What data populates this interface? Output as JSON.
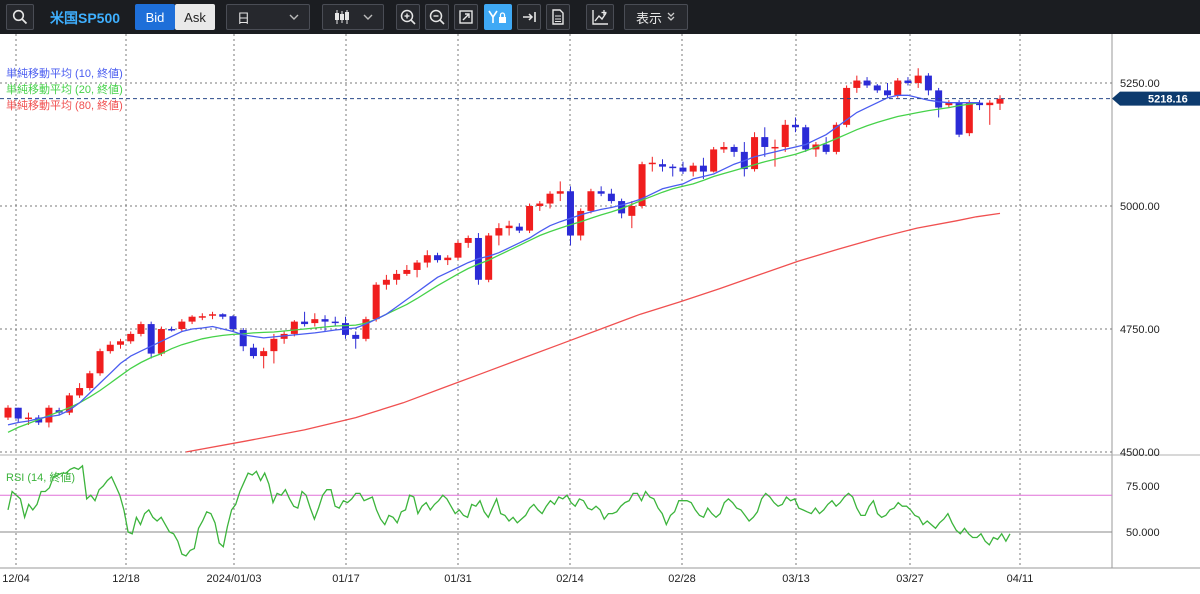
{
  "toolbar": {
    "symbol": "米国SP500",
    "bid_label": "Bid",
    "ask_label": "Ask",
    "timeframe": "日",
    "display_label": "表示"
  },
  "colors": {
    "up": "#f01e1e",
    "down": "#2b2bd6",
    "sma10": "#4a5cf0",
    "sma20": "#46d24a",
    "sma80": "#f05050",
    "rsi": "#3cb43c",
    "rsi_level": "#e070d8",
    "price_label_bg": "#0d3b6e"
  },
  "chart_data": {
    "type": "candlestick",
    "legend": [
      "単純移動平均 (10, 終値)",
      "単純移動平均 (20, 終値)",
      "単純移動平均 (80, 終値)"
    ],
    "last_price": "5218.16",
    "x_ticks": [
      "12/04",
      "12/18",
      "2024/01/03",
      "01/17",
      "01/31",
      "02/14",
      "02/28",
      "03/13",
      "03/27",
      "04/11"
    ],
    "y_ticks": [
      "4500.00",
      "4750.00",
      "5000.00",
      "5250.00"
    ],
    "ylim": [
      4500,
      5300
    ],
    "candles": [
      [
        4570,
        4595,
        4565,
        4590
      ],
      [
        4590,
        4590,
        4560,
        4568
      ],
      [
        4568,
        4580,
        4555,
        4570
      ],
      [
        4570,
        4575,
        4555,
        4560
      ],
      [
        4560,
        4595,
        4550,
        4590
      ],
      [
        4585,
        4590,
        4575,
        4580
      ],
      [
        4580,
        4620,
        4575,
        4615
      ],
      [
        4615,
        4640,
        4610,
        4630
      ],
      [
        4630,
        4665,
        4625,
        4660
      ],
      [
        4660,
        4710,
        4655,
        4705
      ],
      [
        4705,
        4725,
        4700,
        4718
      ],
      [
        4718,
        4730,
        4710,
        4725
      ],
      [
        4725,
        4745,
        4720,
        4740
      ],
      [
        4740,
        4765,
        4735,
        4760
      ],
      [
        4760,
        4765,
        4690,
        4700
      ],
      [
        4700,
        4755,
        4695,
        4750
      ],
      [
        4750,
        4755,
        4745,
        4748
      ],
      [
        4750,
        4770,
        4745,
        4765
      ],
      [
        4765,
        4778,
        4760,
        4775
      ],
      [
        4775,
        4782,
        4768,
        4776
      ],
      [
        4780,
        4785,
        4770,
        4780
      ],
      [
        4780,
        4782,
        4770,
        4775
      ],
      [
        4776,
        4778,
        4745,
        4750
      ],
      [
        4748,
        4752,
        4705,
        4715
      ],
      [
        4712,
        4720,
        4690,
        4695
      ],
      [
        4695,
        4712,
        4670,
        4705
      ],
      [
        4705,
        4740,
        4680,
        4730
      ],
      [
        4730,
        4745,
        4720,
        4740
      ],
      [
        4740,
        4768,
        4735,
        4765
      ],
      [
        4765,
        4785,
        4755,
        4760
      ],
      [
        4762,
        4782,
        4755,
        4770
      ],
      [
        4770,
        4778,
        4745,
        4765
      ],
      [
        4765,
        4775,
        4755,
        4762
      ],
      [
        4762,
        4775,
        4730,
        4738
      ],
      [
        4738,
        4745,
        4710,
        4730
      ],
      [
        4730,
        4775,
        4725,
        4770
      ],
      [
        4770,
        4845,
        4765,
        4840
      ],
      [
        4840,
        4860,
        4830,
        4850
      ],
      [
        4850,
        4870,
        4840,
        4862
      ],
      [
        4862,
        4880,
        4858,
        4870
      ],
      [
        4870,
        4890,
        4855,
        4885
      ],
      [
        4885,
        4910,
        4875,
        4900
      ],
      [
        4900,
        4905,
        4885,
        4890
      ],
      [
        4890,
        4900,
        4880,
        4895
      ],
      [
        4895,
        4930,
        4890,
        4925
      ],
      [
        4925,
        4940,
        4915,
        4935
      ],
      [
        4935,
        4945,
        4840,
        4850
      ],
      [
        4850,
        4945,
        4845,
        4940
      ],
      [
        4940,
        4965,
        4920,
        4955
      ],
      [
        4955,
        4970,
        4940,
        4960
      ],
      [
        4958,
        4965,
        4945,
        4950
      ],
      [
        4950,
        5005,
        4945,
        5000
      ],
      [
        5000,
        5010,
        4990,
        5005
      ],
      [
        5005,
        5030,
        4995,
        5025
      ],
      [
        5025,
        5050,
        5010,
        5030
      ],
      [
        5030,
        5040,
        4920,
        4940
      ],
      [
        4940,
        4995,
        4930,
        4990
      ],
      [
        4990,
        5035,
        4985,
        5030
      ],
      [
        5030,
        5040,
        5020,
        5025
      ],
      [
        5025,
        5035,
        5005,
        5010
      ],
      [
        5010,
        5015,
        4975,
        4985
      ],
      [
        4980,
        5010,
        4955,
        5000
      ],
      [
        5000,
        5090,
        4995,
        5085
      ],
      [
        5085,
        5100,
        5070,
        5088
      ],
      [
        5085,
        5095,
        5070,
        5080
      ],
      [
        5080,
        5085,
        5060,
        5078
      ],
      [
        5078,
        5090,
        5065,
        5070
      ],
      [
        5070,
        5088,
        5060,
        5082
      ],
      [
        5082,
        5098,
        5055,
        5070
      ],
      [
        5070,
        5120,
        5068,
        5115
      ],
      [
        5115,
        5130,
        5108,
        5120
      ],
      [
        5120,
        5125,
        5100,
        5110
      ],
      [
        5110,
        5130,
        5060,
        5075
      ],
      [
        5075,
        5150,
        5070,
        5140
      ],
      [
        5140,
        5160,
        5100,
        5120
      ],
      [
        5120,
        5135,
        5080,
        5120
      ],
      [
        5120,
        5175,
        5110,
        5165
      ],
      [
        5165,
        5180,
        5150,
        5160
      ],
      [
        5160,
        5165,
        5110,
        5115
      ],
      [
        5115,
        5130,
        5100,
        5125
      ],
      [
        5125,
        5140,
        5105,
        5110
      ],
      [
        5110,
        5170,
        5105,
        5165
      ],
      [
        5165,
        5245,
        5160,
        5240
      ],
      [
        5240,
        5265,
        5230,
        5255
      ],
      [
        5255,
        5262,
        5240,
        5245
      ],
      [
        5245,
        5248,
        5230,
        5235
      ],
      [
        5235,
        5250,
        5220,
        5225
      ],
      [
        5225,
        5260,
        5220,
        5255
      ],
      [
        5255,
        5262,
        5245,
        5250
      ],
      [
        5250,
        5280,
        5240,
        5265
      ],
      [
        5265,
        5270,
        5225,
        5235
      ],
      [
        5235,
        5240,
        5180,
        5200
      ],
      [
        5205,
        5215,
        5200,
        5210
      ],
      [
        5210,
        5215,
        5140,
        5145
      ],
      [
        5148,
        5215,
        5142,
        5210
      ],
      [
        5210,
        5215,
        5195,
        5205
      ],
      [
        5205,
        5215,
        5165,
        5210
      ],
      [
        5208,
        5225,
        5195,
        5218
      ]
    ],
    "sma10": [
      4555,
      4560,
      4563,
      4568,
      4572,
      4575,
      4585,
      4600,
      4620,
      4640,
      4660,
      4680,
      4695,
      4705,
      4715,
      4725,
      4735,
      4745,
      4750,
      4752,
      4755,
      4750,
      4745,
      4738,
      4735,
      4732,
      4734,
      4736,
      4738,
      4740,
      4742,
      4745,
      4748,
      4750,
      4752,
      4760,
      4770,
      4780,
      4795,
      4810,
      4825,
      4840,
      4855,
      4865,
      4875,
      4885,
      4893,
      4898,
      4905,
      4915,
      4925,
      4935,
      4948,
      4960,
      4968,
      4975,
      4982,
      4988,
      4993,
      4997,
      5002,
      5008,
      5015,
      5025,
      5035,
      5040,
      5045,
      5055,
      5060,
      5065,
      5075,
      5085,
      5092,
      5100,
      5105,
      5110,
      5115,
      5120,
      5125,
      5135,
      5145,
      5160,
      5175,
      5190,
      5200,
      5210,
      5220,
      5225,
      5225,
      5220,
      5215,
      5212,
      5210,
      5210,
      5210,
      5210
    ],
    "sma20": [
      4540,
      4550,
      4558,
      4566,
      4574,
      4582,
      4590,
      4600,
      4612,
      4625,
      4640,
      4655,
      4670,
      4682,
      4692,
      4700,
      4710,
      4718,
      4724,
      4730,
      4734,
      4737,
      4739,
      4740,
      4742,
      4743,
      4744,
      4746,
      4748,
      4750,
      4752,
      4754,
      4756,
      4757,
      4758,
      4762,
      4770,
      4780,
      4790,
      4800,
      4812,
      4825,
      4838,
      4850,
      4862,
      4873,
      4882,
      4890,
      4900,
      4910,
      4920,
      4930,
      4940,
      4948,
      4955,
      4962,
      4968,
      4975,
      4982,
      4988,
      4995,
      5003,
      5012,
      5020,
      5028,
      5035,
      5040,
      5045,
      5052,
      5060,
      5066,
      5072,
      5078,
      5084,
      5090,
      5095,
      5100,
      5105,
      5112,
      5120,
      5128,
      5137,
      5146,
      5155,
      5163,
      5170,
      5176,
      5182,
      5186,
      5190,
      5194,
      5197,
      5200,
      5204,
      5207,
      5210
    ],
    "sma80": [
      [
        45,
        4500
      ],
      [
        60,
        4522
      ],
      [
        75,
        4545
      ],
      [
        88,
        4570
      ],
      [
        100,
        4600
      ],
      [
        110,
        4630
      ],
      [
        120,
        4660
      ],
      [
        130,
        4690
      ],
      [
        140,
        4720
      ],
      [
        150,
        4750
      ],
      [
        160,
        4780
      ],
      [
        170,
        4805
      ],
      [
        180,
        4832
      ],
      [
        190,
        4860
      ],
      [
        200,
        4888
      ],
      [
        210,
        4912
      ],
      [
        220,
        4935
      ],
      [
        230,
        4955
      ],
      [
        240,
        4970
      ],
      [
        245,
        4978
      ],
      [
        251,
        4985
      ]
    ],
    "rsi": {
      "label": "RSI (14, 終値)",
      "level": 70,
      "ylim": [
        40,
        90
      ],
      "y_ticks": [
        "75.000",
        "50.000"
      ],
      "values": [
        62,
        72,
        70,
        68,
        58,
        65,
        62,
        65,
        72,
        72,
        74,
        80,
        81,
        82,
        82,
        84,
        85,
        84,
        86,
        68,
        70,
        67,
        73,
        75,
        78,
        80,
        75,
        70,
        62,
        50,
        49,
        58,
        54,
        60,
        62,
        58,
        56,
        58,
        54,
        50,
        49,
        45,
        38,
        37,
        40,
        41,
        52,
        56,
        61,
        60,
        55,
        44,
        42,
        53,
        62,
        65,
        72,
        77,
        82,
        81,
        83,
        78,
        82,
        76,
        66,
        71,
        70,
        73,
        68,
        64,
        63,
        72,
        70,
        63,
        57,
        63,
        70,
        73,
        73,
        64,
        63,
        67,
        66,
        68,
        71,
        71,
        67,
        68,
        69,
        62,
        57,
        54,
        59,
        58,
        55,
        61,
        62,
        70,
        69,
        60,
        64,
        66,
        62,
        65,
        67,
        70,
        68,
        64,
        60,
        62,
        59,
        58,
        65,
        64,
        67,
        61,
        58,
        63,
        68,
        60,
        59,
        56,
        58,
        55,
        57,
        59,
        63,
        65,
        62,
        60,
        64,
        67,
        65,
        69,
        68,
        70,
        66,
        64,
        68,
        67,
        63,
        62,
        64,
        62,
        57,
        60,
        60,
        61,
        64,
        66,
        67,
        71,
        71,
        67,
        72,
        69,
        68,
        63,
        60,
        54,
        59,
        61,
        67,
        67,
        67,
        66,
        62,
        59,
        58,
        63,
        60,
        58,
        60,
        66,
        68,
        66,
        63,
        62,
        59,
        56,
        58,
        61,
        68,
        71,
        69,
        66,
        64,
        65,
        69,
        67,
        68,
        63,
        62,
        61,
        60,
        63,
        60,
        62,
        65,
        67,
        64,
        66,
        69,
        71,
        69,
        63,
        59,
        59,
        64,
        67,
        60,
        58,
        59,
        62,
        63,
        66,
        64,
        64,
        62,
        59,
        58,
        54,
        56,
        54,
        52,
        55,
        57,
        60,
        55,
        51,
        49,
        52,
        49,
        47,
        47,
        49,
        45,
        43,
        47,
        46,
        49,
        45,
        49
      ]
    }
  }
}
